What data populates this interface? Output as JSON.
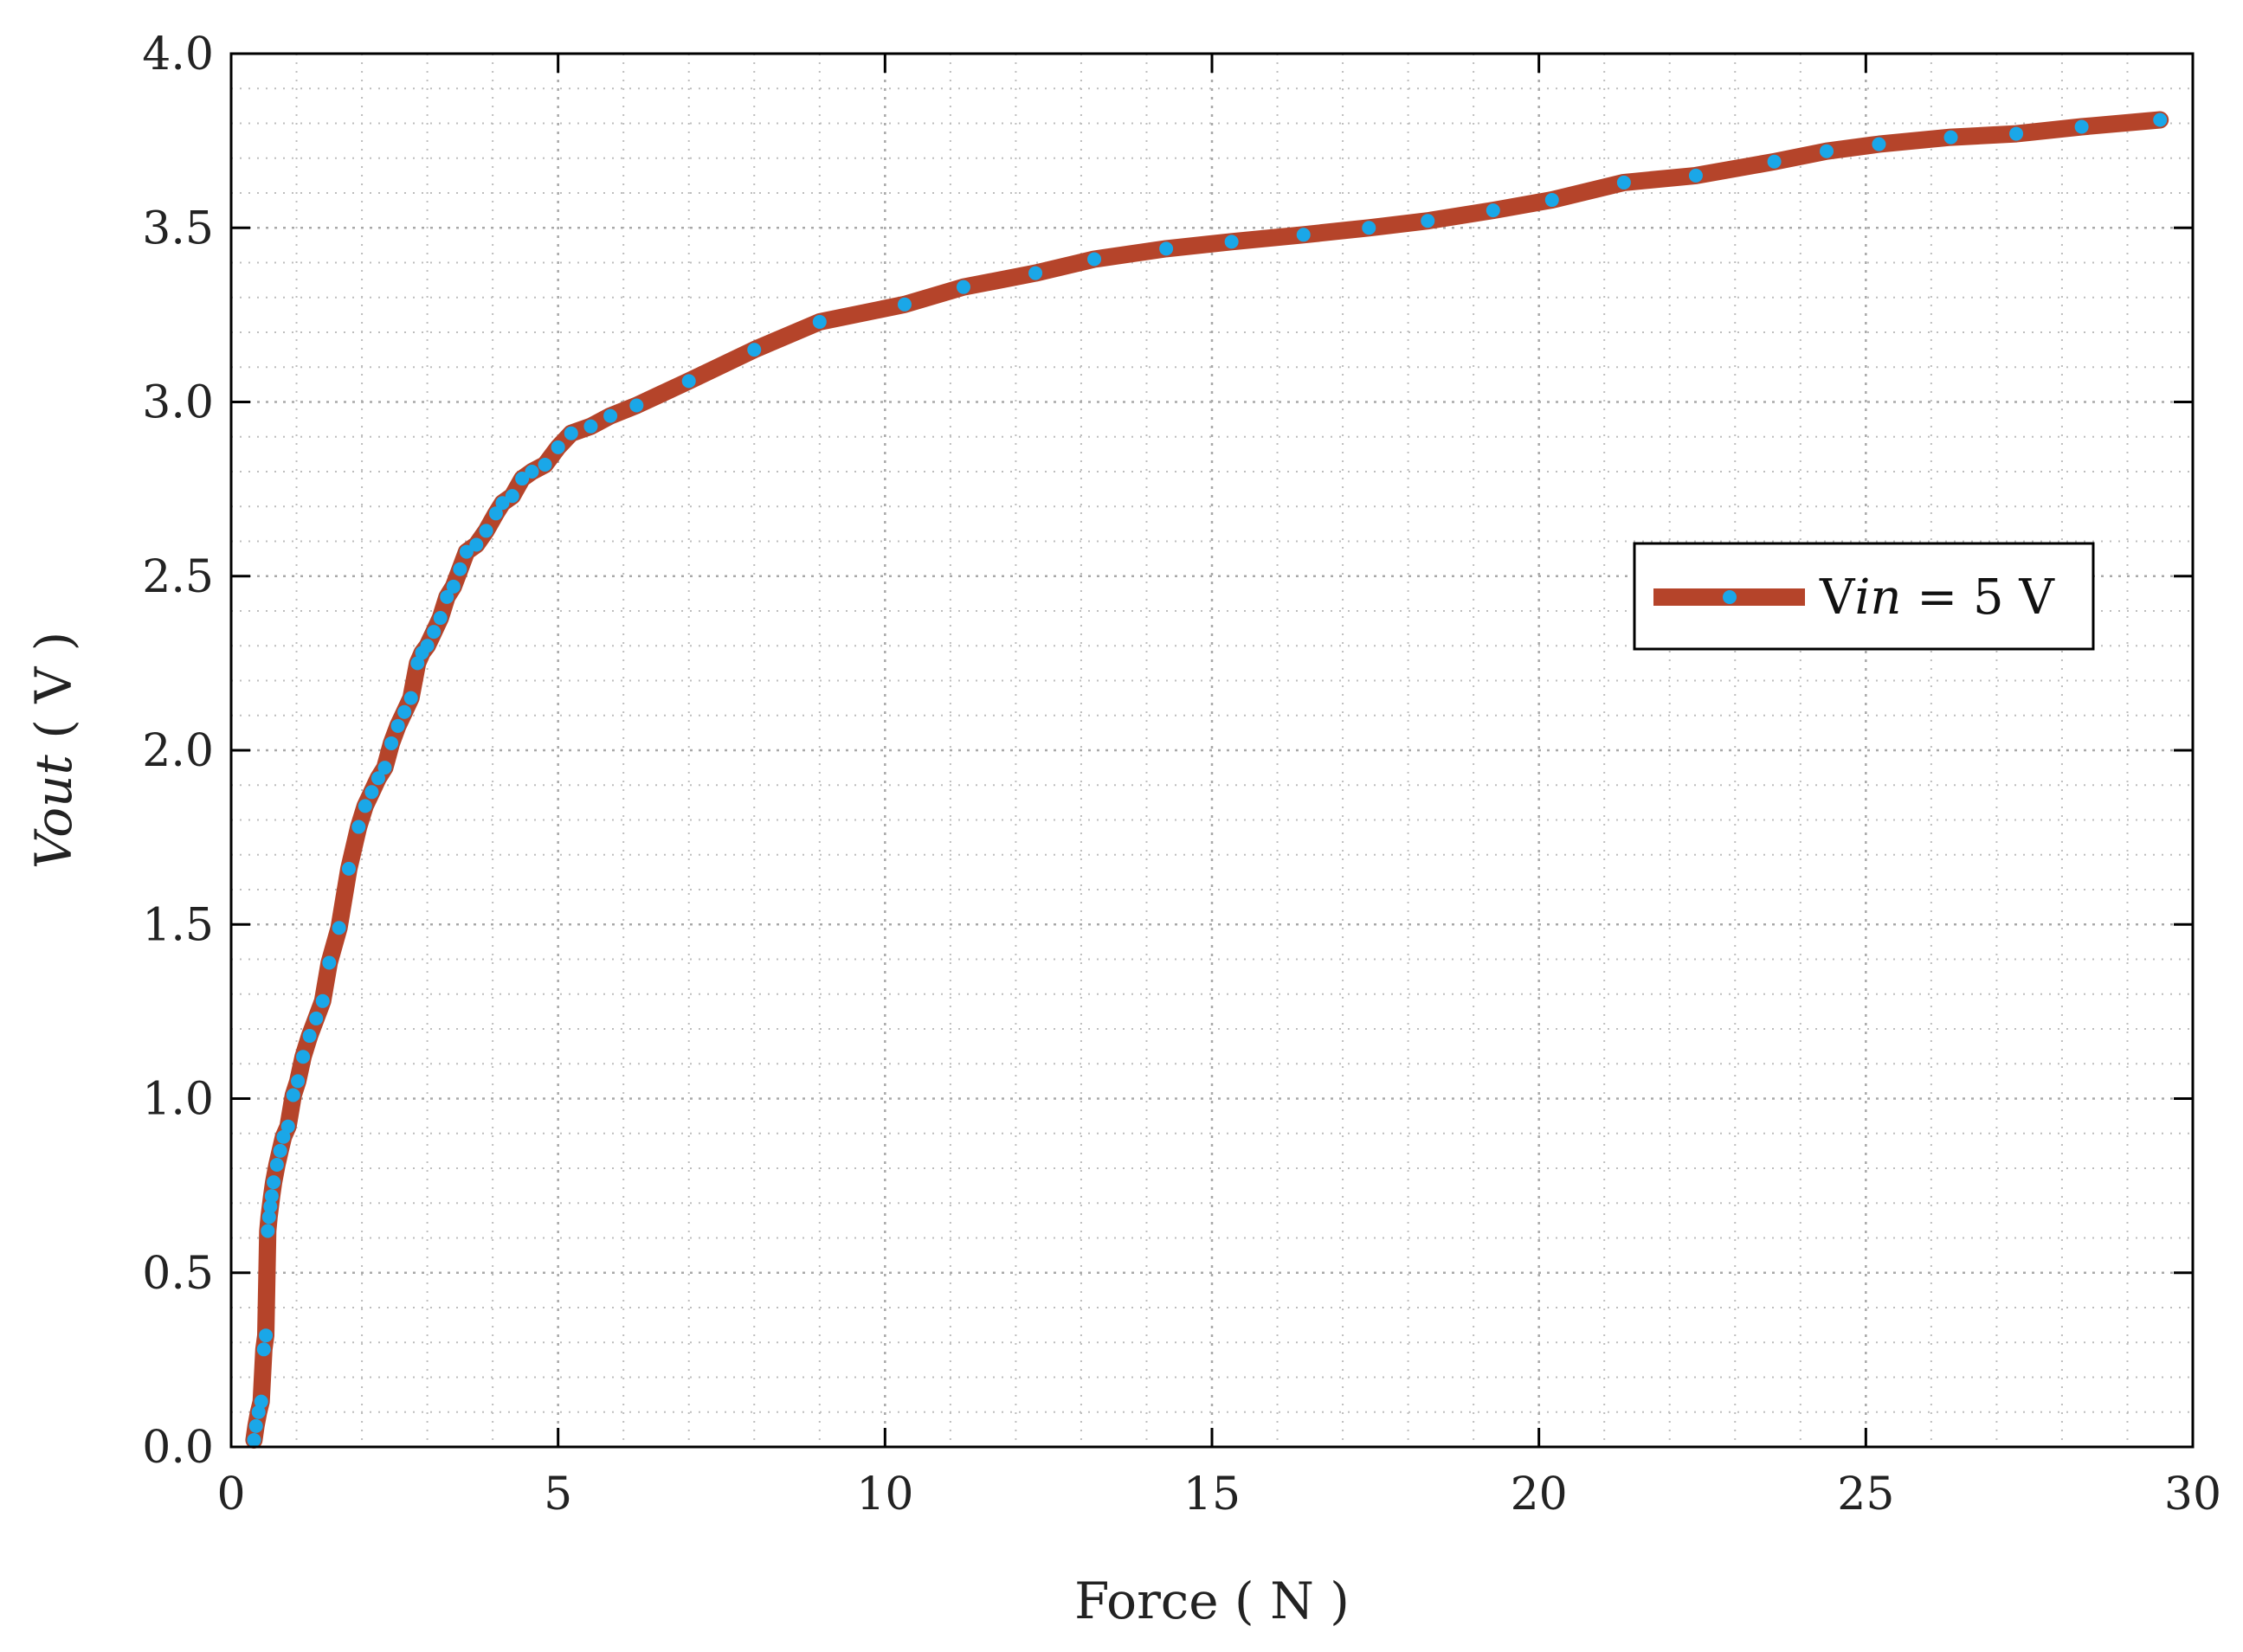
{
  "chart_data": {
    "type": "line",
    "xlabel": "Force ( N )",
    "ylabel": {
      "main": "V",
      "sub": "out",
      "unit": " ( V )"
    },
    "xlim": [
      0,
      30
    ],
    "ylim": [
      0,
      4
    ],
    "xticks": [
      0,
      5,
      10,
      15,
      20,
      25,
      30
    ],
    "xtick_labels": [
      "0",
      "5",
      "10",
      "15",
      "20",
      "25",
      "30"
    ],
    "yticks": [
      0,
      0.5,
      1,
      1.5,
      2,
      2.5,
      3,
      3.5,
      4
    ],
    "ytick_labels": [
      "0.0",
      "0.5",
      "1.0",
      "1.5",
      "2.0",
      "2.5",
      "3.0",
      "3.5",
      "4.0"
    ],
    "grid": true,
    "minor_grid": true,
    "legend_position": "right",
    "colors": {
      "line": "#b5442a",
      "marker": "#1aa7e8",
      "grid": "#bdbdbd",
      "axis": "#000000"
    },
    "series": [
      {
        "legend": {
          "main": "V",
          "sub": "in",
          "rest": " = 5 V"
        },
        "x": [
          0.35,
          0.38,
          0.42,
          0.46,
          0.5,
          0.53,
          0.56,
          0.58,
          0.6,
          0.62,
          0.65,
          0.7,
          0.75,
          0.8,
          0.87,
          0.95,
          1.02,
          1.1,
          1.2,
          1.3,
          1.4,
          1.5,
          1.65,
          1.8,
          1.95,
          2.05,
          2.15,
          2.25,
          2.35,
          2.45,
          2.55,
          2.65,
          2.75,
          2.85,
          2.92,
          3.0,
          3.1,
          3.2,
          3.3,
          3.4,
          3.5,
          3.6,
          3.75,
          3.9,
          4.05,
          4.15,
          4.3,
          4.45,
          4.6,
          4.8,
          5.0,
          5.2,
          5.5,
          5.8,
          6.2,
          7.0,
          8.0,
          9.0,
          10.3,
          11.2,
          12.3,
          13.2,
          14.3,
          15.3,
          16.4,
          17.4,
          18.3,
          19.3,
          20.2,
          21.3,
          22.4,
          23.6,
          24.4,
          25.2,
          26.3,
          27.3,
          28.3,
          29.5
        ],
        "y": [
          0.02,
          0.06,
          0.1,
          0.13,
          0.28,
          0.32,
          0.62,
          0.66,
          0.69,
          0.72,
          0.76,
          0.81,
          0.85,
          0.89,
          0.92,
          1.01,
          1.05,
          1.12,
          1.18,
          1.23,
          1.28,
          1.39,
          1.49,
          1.66,
          1.78,
          1.84,
          1.88,
          1.92,
          1.95,
          2.02,
          2.07,
          2.11,
          2.15,
          2.25,
          2.28,
          2.3,
          2.34,
          2.38,
          2.44,
          2.47,
          2.52,
          2.57,
          2.59,
          2.63,
          2.68,
          2.71,
          2.73,
          2.78,
          2.8,
          2.82,
          2.87,
          2.91,
          2.93,
          2.96,
          2.99,
          3.06,
          3.15,
          3.23,
          3.28,
          3.33,
          3.37,
          3.41,
          3.44,
          3.46,
          3.48,
          3.5,
          3.52,
          3.55,
          3.58,
          3.63,
          3.65,
          3.69,
          3.72,
          3.74,
          3.76,
          3.77,
          3.79,
          3.81
        ]
      }
    ]
  }
}
